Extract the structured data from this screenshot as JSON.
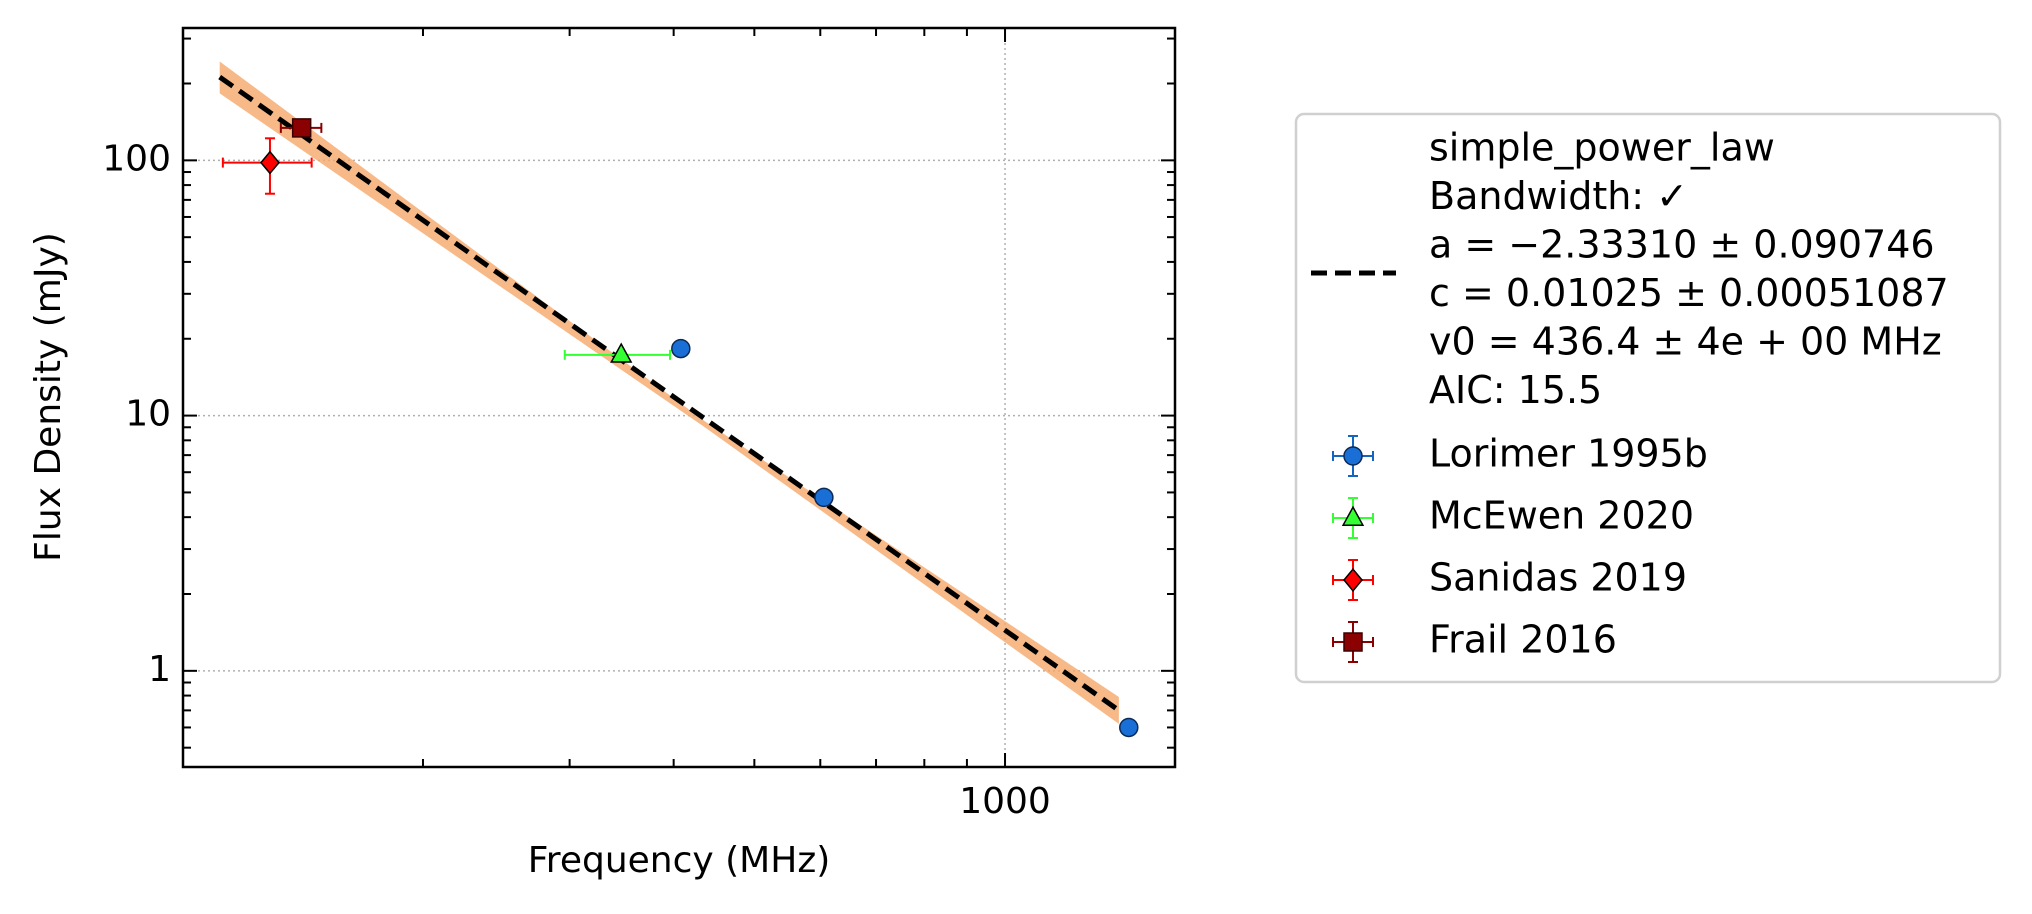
{
  "chart_data": {
    "type": "scatter",
    "xlabel": "Frequency (MHz)",
    "ylabel": "Flux Density (mJy)",
    "xscale": "log",
    "yscale": "log",
    "xlim": [
      103,
      1600
    ],
    "ylim": [
      0.42,
      330
    ],
    "xticks": [
      1000
    ],
    "yticks": [
      1,
      10,
      100
    ],
    "xminorticks": [
      200,
      300,
      400,
      500,
      600,
      700,
      800,
      900
    ],
    "yminorticks": [
      0.5,
      0.6,
      0.7,
      0.8,
      0.9,
      2,
      3,
      4,
      5,
      6,
      7,
      8,
      9,
      20,
      30,
      40,
      50,
      60,
      70,
      80,
      90,
      200,
      300
    ],
    "grid": true,
    "fit": {
      "legend_lines": [
        "simple_power_law",
        "Bandwidth: ✓",
        "a = −2.33310 ± 0.090746",
        "c = 0.01025 ± 0.00051087",
        "v0 = 436.4 ± 4e + 00 MHz",
        "AIC: 15.5"
      ],
      "color": "#000000",
      "band_color": "#f5a86a",
      "x": [
        114,
        1370
      ],
      "values": [
        212,
        0.7
      ],
      "band_x": [
        114,
        436,
        1370
      ],
      "band_upper": [
        244,
        9.5,
        0.79
      ],
      "band_lower": [
        183,
        9.0,
        0.62
      ]
    },
    "series": [
      {
        "name": "Lorimer 1995b",
        "color": "#1a6fd6",
        "marker": "circle",
        "x": [
          408,
          606,
          1408
        ],
        "values": [
          18.3,
          4.78,
          0.6
        ],
        "xerr": [
          0,
          0,
          0
        ],
        "yerr": [
          0,
          0,
          0
        ]
      },
      {
        "name": "McEwen 2020",
        "color": "#33ff33",
        "marker": "triangle",
        "x": [
          346
        ],
        "values": [
          17.3
        ],
        "xerr": [
          50
        ],
        "yerr": [
          0
        ]
      },
      {
        "name": "Sanidas 2019",
        "color": "#ff0000",
        "marker": "diamond",
        "x": [
          131
        ],
        "values": [
          98
        ],
        "xerr": [
          16
        ],
        "yerr": [
          24
        ]
      },
      {
        "name": "Frail 2016",
        "color": "#8b0000",
        "marker": "square",
        "x": [
          143
        ],
        "values": [
          134
        ],
        "xerr": [
          8
        ],
        "yerr": [
          6
        ]
      }
    ]
  }
}
